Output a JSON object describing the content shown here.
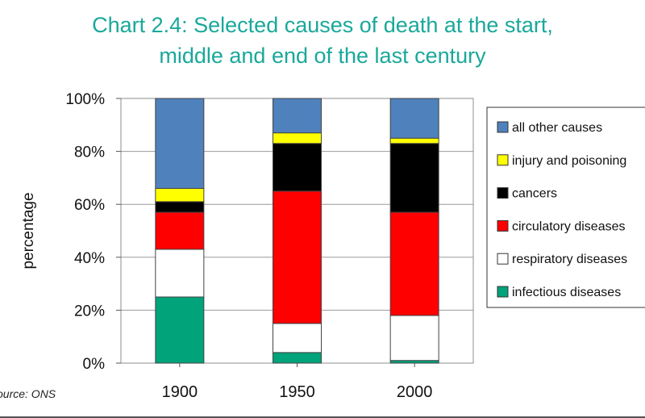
{
  "chart_data": {
    "type": "bar",
    "stacked": true,
    "title_lines": [
      "Chart 2.4: Selected causes of death at the start,",
      "middle and end of the last century"
    ],
    "ylabel": "percentage",
    "xlabel": "",
    "ylim": [
      0,
      100
    ],
    "y_ticks": [
      "0%",
      "20%",
      "40%",
      "60%",
      "80%",
      "100%"
    ],
    "categories": [
      "1900",
      "1950",
      "2000"
    ],
    "series": [
      {
        "name": "infectious diseases",
        "color": "#00a37a",
        "values": [
          25,
          4,
          1
        ]
      },
      {
        "name": "respiratory diseases",
        "color": "#ffffff",
        "values": [
          18,
          11,
          17
        ]
      },
      {
        "name": "circulatory diseases",
        "color": "#ff0000",
        "values": [
          14,
          50,
          39
        ]
      },
      {
        "name": "cancers",
        "color": "#000000",
        "values": [
          4,
          18,
          26
        ]
      },
      {
        "name": "injury and poisoning",
        "color": "#ffff00",
        "values": [
          5,
          4,
          2
        ]
      },
      {
        "name": "all other causes",
        "color": "#4f81bd",
        "values": [
          34,
          13,
          15
        ]
      }
    ],
    "legend_items": [
      "all other causes",
      "injury and poisoning",
      "cancers",
      "circulatory diseases",
      "respiratory diseases",
      "infectious diseases"
    ],
    "grid": true,
    "legend_position": "right"
  },
  "source_note": "ource: ONS"
}
